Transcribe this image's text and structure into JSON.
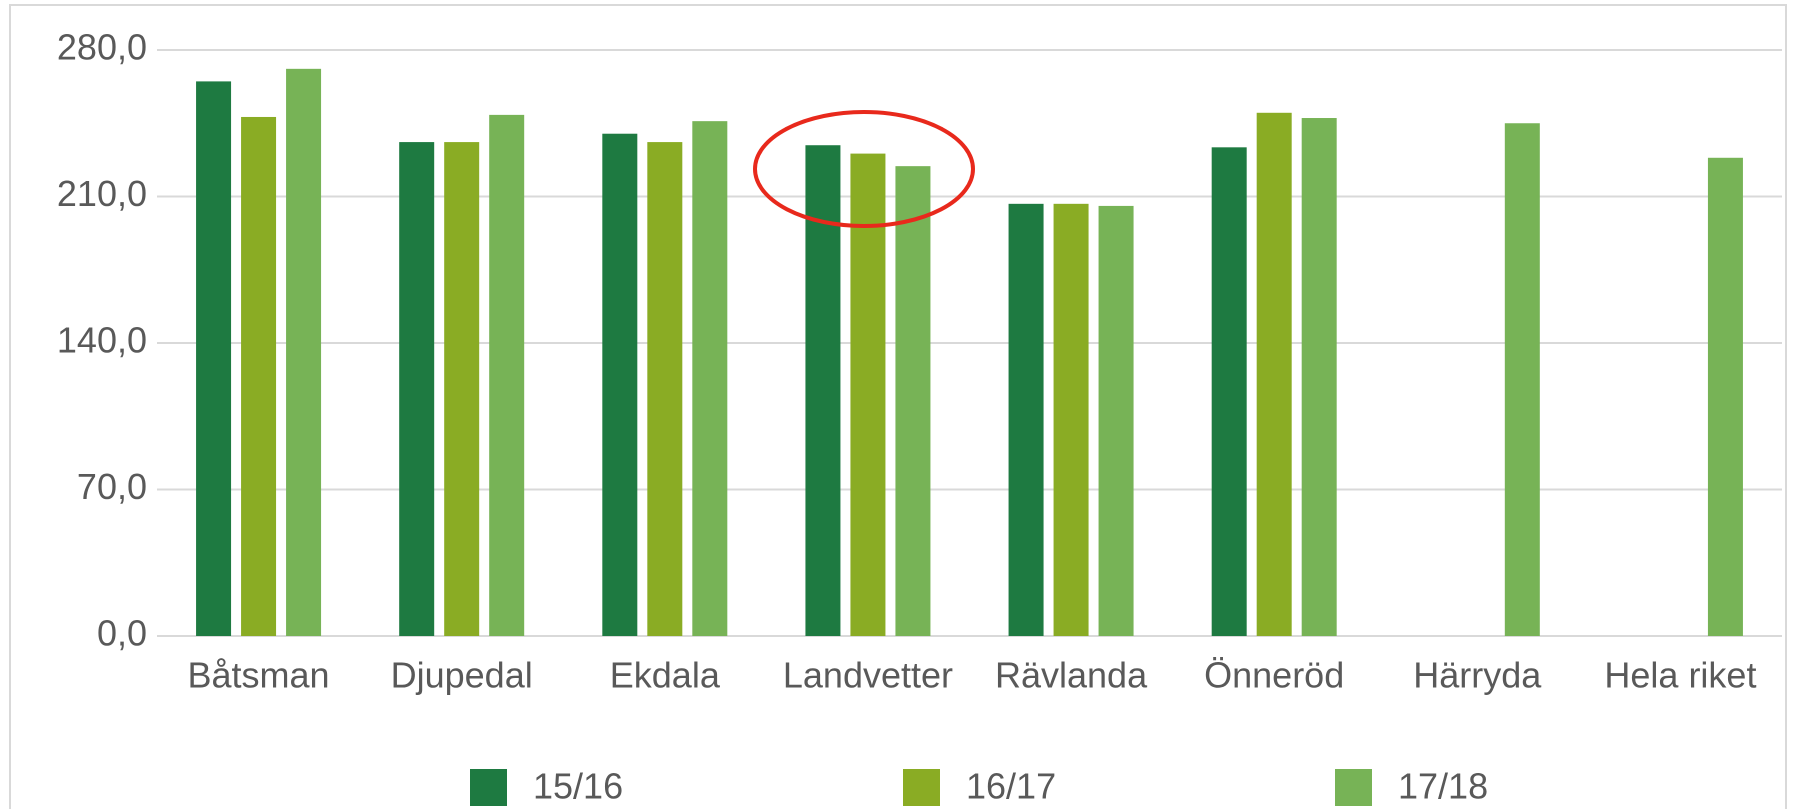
{
  "chart_data": {
    "type": "bar",
    "categories": [
      "Båtsman",
      "Djupedal",
      "Ekdala",
      "Landvetter",
      "Rävlanda",
      "Önneröd",
      "Härryda",
      "Hela riket"
    ],
    "series": [
      {
        "name": "15/16",
        "color": "#1e7a41",
        "values": [
          265,
          236,
          240,
          234.5,
          206.5,
          233.5,
          null,
          null
        ]
      },
      {
        "name": "16/17",
        "color": "#8aac24",
        "values": [
          248,
          236,
          236,
          230.5,
          206.5,
          250,
          null,
          null
        ]
      },
      {
        "name": "17/18",
        "color": "#77b356",
        "values": [
          271,
          249,
          246,
          224.5,
          205.5,
          247.5,
          245,
          228.5
        ]
      }
    ],
    "ylim": [
      0,
      280
    ],
    "yticks": [
      {
        "value": 0,
        "label": "0,0"
      },
      {
        "value": 70,
        "label": "70,0"
      },
      {
        "value": 140,
        "label": "140,0"
      },
      {
        "value": 210,
        "label": "210,0"
      },
      {
        "value": 280,
        "label": "280,0"
      }
    ],
    "grid": true,
    "legend": "bottom"
  }
}
